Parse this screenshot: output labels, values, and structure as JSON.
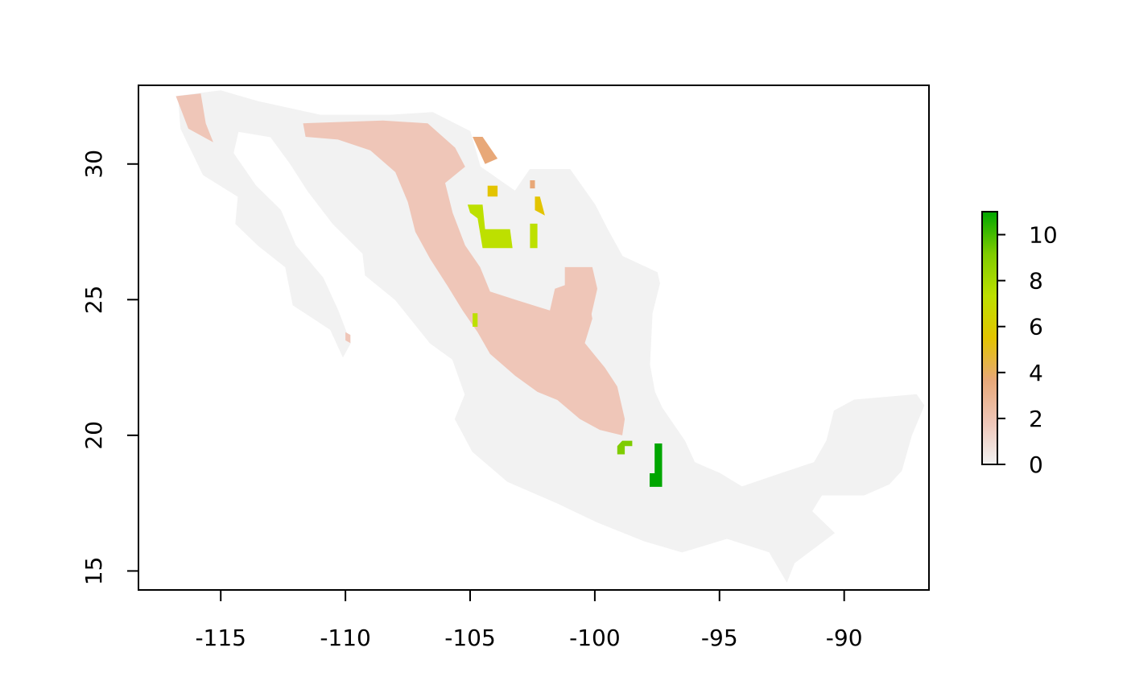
{
  "chart_data": {
    "type": "heatmap",
    "title": "",
    "xlabel": "",
    "ylabel": "",
    "xlim": [
      -118.3,
      -86.6
    ],
    "ylim": [
      14.3,
      32.9
    ],
    "x_ticks": [
      -115,
      -110,
      -105,
      -100,
      -95,
      -90
    ],
    "y_ticks": [
      15,
      20,
      25,
      30
    ],
    "x_tick_labels": [
      "-115",
      "-110",
      "-105",
      "-100",
      "-95",
      "-90"
    ],
    "y_tick_labels": [
      "15",
      "20",
      "25",
      "30"
    ],
    "legend": {
      "placement": "right",
      "min": 0,
      "max": 11,
      "ticks": [
        0,
        2,
        4,
        6,
        8,
        10
      ],
      "tick_labels": [
        "0",
        "2",
        "4",
        "6",
        "8",
        "10"
      ],
      "colors": [
        "#f2f2f2",
        "#efc6b8",
        "#e8a878",
        "#e3c400",
        "#bde000",
        "#7fcc00",
        "#00a600"
      ]
    },
    "background_value": 0,
    "background_color": "#f2f2f2",
    "region_outline": [
      [
        -116.7,
        32.5
      ],
      [
        -115.0,
        32.7
      ],
      [
        -113.5,
        32.3
      ],
      [
        -111.0,
        31.8
      ],
      [
        -108.2,
        31.8
      ],
      [
        -106.5,
        31.9
      ],
      [
        -105.0,
        31.2
      ],
      [
        -104.6,
        29.9
      ],
      [
        -103.2,
        29.0
      ],
      [
        -102.6,
        29.8
      ],
      [
        -101.0,
        29.8
      ],
      [
        -100.0,
        28.5
      ],
      [
        -99.5,
        27.6
      ],
      [
        -98.9,
        26.6
      ],
      [
        -97.5,
        26.0
      ],
      [
        -97.4,
        25.6
      ],
      [
        -97.7,
        24.5
      ],
      [
        -97.8,
        22.6
      ],
      [
        -97.6,
        21.6
      ],
      [
        -97.3,
        21.0
      ],
      [
        -96.4,
        19.8
      ],
      [
        -96.0,
        19.0
      ],
      [
        -95.0,
        18.6
      ],
      [
        -94.1,
        18.1
      ],
      [
        -92.5,
        18.6
      ],
      [
        -91.2,
        19.0
      ],
      [
        -90.7,
        19.8
      ],
      [
        -90.4,
        20.9
      ],
      [
        -89.6,
        21.3
      ],
      [
        -87.1,
        21.5
      ],
      [
        -86.8,
        21.1
      ],
      [
        -87.3,
        20.0
      ],
      [
        -87.7,
        18.7
      ],
      [
        -88.2,
        18.2
      ],
      [
        -89.2,
        17.8
      ],
      [
        -90.9,
        17.8
      ],
      [
        -91.3,
        17.2
      ],
      [
        -90.4,
        16.4
      ],
      [
        -92.0,
        15.3
      ],
      [
        -92.3,
        14.6
      ],
      [
        -93.0,
        15.7
      ],
      [
        -94.7,
        16.2
      ],
      [
        -96.5,
        15.7
      ],
      [
        -98.0,
        16.1
      ],
      [
        -99.9,
        16.8
      ],
      [
        -101.5,
        17.5
      ],
      [
        -103.5,
        18.3
      ],
      [
        -104.9,
        19.4
      ],
      [
        -105.6,
        20.6
      ],
      [
        -105.2,
        21.5
      ],
      [
        -105.7,
        22.8
      ],
      [
        -106.6,
        23.4
      ],
      [
        -108.0,
        25.0
      ],
      [
        -109.2,
        25.9
      ],
      [
        -109.3,
        26.7
      ],
      [
        -110.5,
        27.8
      ],
      [
        -111.5,
        29.0
      ],
      [
        -112.2,
        30.0
      ],
      [
        -113.0,
        31.0
      ],
      [
        -114.3,
        31.2
      ],
      [
        -114.5,
        30.4
      ],
      [
        -113.6,
        29.2
      ],
      [
        -112.6,
        28.3
      ],
      [
        -112.0,
        27.0
      ],
      [
        -110.9,
        25.8
      ],
      [
        -110.3,
        24.6
      ],
      [
        -109.8,
        23.4
      ],
      [
        -110.1,
        22.9
      ],
      [
        -110.6,
        23.9
      ],
      [
        -112.1,
        24.8
      ],
      [
        -112.4,
        26.2
      ],
      [
        -113.5,
        27.0
      ],
      [
        -114.4,
        27.8
      ],
      [
        -114.3,
        28.8
      ],
      [
        -115.7,
        29.6
      ],
      [
        -116.6,
        31.3
      ]
    ],
    "value_regions": [
      {
        "value": 1,
        "points": [
          [
            -116.8,
            32.5
          ],
          [
            -115.8,
            32.6
          ],
          [
            -115.6,
            31.5
          ],
          [
            -115.3,
            30.8
          ],
          [
            -116.3,
            31.3
          ]
        ]
      },
      {
        "value": 1,
        "points": [
          [
            -110.0,
            23.8
          ],
          [
            -109.8,
            23.7
          ],
          [
            -109.8,
            23.4
          ],
          [
            -110.0,
            23.5
          ]
        ]
      },
      {
        "value": 2,
        "points": [
          [
            -111.7,
            31.5
          ],
          [
            -108.5,
            31.6
          ],
          [
            -106.7,
            31.5
          ],
          [
            -105.6,
            30.6
          ],
          [
            -105.2,
            29.9
          ],
          [
            -106.0,
            29.3
          ],
          [
            -105.7,
            28.2
          ],
          [
            -105.2,
            27.0
          ],
          [
            -104.6,
            26.2
          ],
          [
            -104.2,
            25.3
          ],
          [
            -103.2,
            25.0
          ],
          [
            -101.8,
            24.6
          ],
          [
            -101.6,
            25.4
          ],
          [
            -100.7,
            25.7
          ],
          [
            -100.3,
            25.3
          ],
          [
            -100.1,
            24.3
          ],
          [
            -100.4,
            23.4
          ],
          [
            -99.6,
            22.5
          ],
          [
            -99.1,
            21.8
          ],
          [
            -98.8,
            20.6
          ],
          [
            -98.9,
            20.0
          ],
          [
            -99.8,
            20.2
          ],
          [
            -100.6,
            20.6
          ],
          [
            -101.5,
            21.3
          ],
          [
            -102.3,
            21.6
          ],
          [
            -103.2,
            22.2
          ],
          [
            -104.2,
            23.0
          ],
          [
            -104.7,
            23.8
          ],
          [
            -105.3,
            24.6
          ],
          [
            -105.9,
            25.5
          ],
          [
            -106.6,
            26.5
          ],
          [
            -107.2,
            27.5
          ],
          [
            -107.5,
            28.6
          ],
          [
            -108.0,
            29.7
          ],
          [
            -109.0,
            30.5
          ],
          [
            -110.3,
            30.9
          ],
          [
            -111.6,
            31.0
          ]
        ]
      },
      {
        "value": 2,
        "points": [
          [
            -101.2,
            26.2
          ],
          [
            -100.1,
            26.2
          ],
          [
            -99.9,
            25.4
          ],
          [
            -100.2,
            24.2
          ],
          [
            -100.5,
            24.0
          ],
          [
            -100.7,
            24.6
          ],
          [
            -101.2,
            25.1
          ]
        ]
      },
      {
        "value": 3,
        "points": [
          [
            -104.9,
            31.0
          ],
          [
            -104.5,
            31.0
          ],
          [
            -103.9,
            30.2
          ],
          [
            -104.4,
            30.0
          ],
          [
            -104.7,
            30.6
          ]
        ]
      },
      {
        "value": 3,
        "points": [
          [
            -102.6,
            29.4
          ],
          [
            -102.4,
            29.4
          ],
          [
            -102.4,
            29.1
          ],
          [
            -102.6,
            29.1
          ]
        ]
      },
      {
        "value": 5,
        "points": [
          [
            -104.3,
            29.2
          ],
          [
            -103.9,
            29.2
          ],
          [
            -103.9,
            28.8
          ],
          [
            -104.3,
            28.8
          ]
        ]
      },
      {
        "value": 6,
        "points": [
          [
            -102.4,
            28.8
          ],
          [
            -102.2,
            28.8
          ],
          [
            -102.0,
            28.1
          ],
          [
            -102.4,
            28.3
          ]
        ]
      },
      {
        "value": 7,
        "points": [
          [
            -105.1,
            28.5
          ],
          [
            -104.5,
            28.5
          ],
          [
            -104.4,
            27.6
          ],
          [
            -103.4,
            27.6
          ],
          [
            -103.3,
            26.9
          ],
          [
            -104.5,
            26.9
          ],
          [
            -104.7,
            28.0
          ],
          [
            -105.0,
            28.2
          ]
        ]
      },
      {
        "value": 7,
        "points": [
          [
            -102.6,
            27.8
          ],
          [
            -102.3,
            27.8
          ],
          [
            -102.3,
            26.9
          ],
          [
            -102.6,
            26.9
          ]
        ]
      },
      {
        "value": 7,
        "points": [
          [
            -104.9,
            24.5
          ],
          [
            -104.7,
            24.5
          ],
          [
            -104.7,
            24.0
          ],
          [
            -104.9,
            24.0
          ]
        ]
      },
      {
        "value": 10,
        "points": [
          [
            -98.9,
            19.8
          ],
          [
            -98.5,
            19.8
          ],
          [
            -98.5,
            19.6
          ],
          [
            -98.8,
            19.6
          ],
          [
            -98.8,
            19.3
          ],
          [
            -99.1,
            19.3
          ],
          [
            -99.1,
            19.6
          ]
        ]
      },
      {
        "value": 11,
        "points": [
          [
            -97.6,
            19.7
          ],
          [
            -97.3,
            19.7
          ],
          [
            -97.3,
            18.1
          ],
          [
            -97.8,
            18.1
          ],
          [
            -97.8,
            18.6
          ],
          [
            -97.6,
            18.6
          ]
        ]
      }
    ]
  }
}
